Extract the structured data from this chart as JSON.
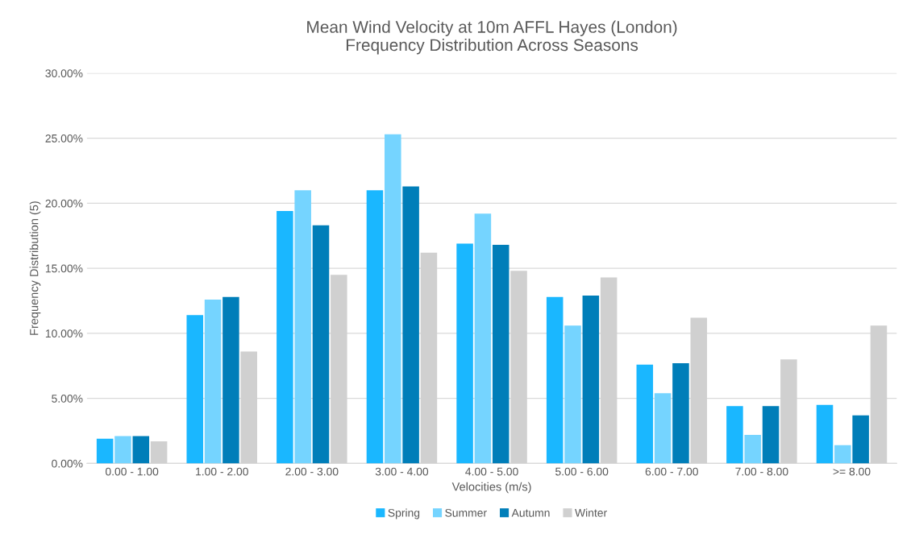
{
  "chart_data": {
    "type": "bar",
    "title": "Mean Wind Velocity at 10m AFFL Hayes (London)\nFrequency Distribution Across Seasons",
    "xlabel": "Velocities (m/s)",
    "ylabel": "Frequency Distribution (5)",
    "categories": [
      "0.00 - 1.00",
      "1.00 - 2.00",
      "2.00 - 3.00",
      "3.00 - 4.00",
      "4.00 - 5.00",
      "5.00 - 6.00",
      "6.00 - 7.00",
      "7.00 - 8.00",
      ">= 8.00"
    ],
    "series": [
      {
        "name": "Spring",
        "color": "#1ab7ff",
        "values": [
          1.9,
          11.4,
          19.4,
          21.0,
          16.9,
          12.8,
          7.6,
          4.4,
          4.5
        ]
      },
      {
        "name": "Summer",
        "color": "#75d4ff",
        "values": [
          2.1,
          12.6,
          21.0,
          25.3,
          19.2,
          10.6,
          5.4,
          2.2,
          1.4
        ]
      },
      {
        "name": "Autumn",
        "color": "#007eb9",
        "values": [
          2.1,
          12.8,
          18.3,
          21.3,
          16.8,
          12.9,
          7.7,
          4.4,
          3.7
        ]
      },
      {
        "name": "Winter",
        "color": "#d0d0d0",
        "values": [
          1.7,
          8.6,
          14.5,
          16.2,
          14.8,
          14.3,
          11.2,
          8.0,
          10.6
        ]
      }
    ],
    "ylim": [
      0,
      30
    ],
    "yticks": [
      {
        "value": 0,
        "label": "0.00%"
      },
      {
        "value": 5,
        "label": "5.00%"
      },
      {
        "value": 10,
        "label": "10.00%"
      },
      {
        "value": 15,
        "label": "15.00%"
      },
      {
        "value": 20,
        "label": "20.00%"
      },
      {
        "value": 25,
        "label": "25.00%"
      },
      {
        "value": 30,
        "label": "30.00%"
      }
    ],
    "grid": "y",
    "legend": "bottom"
  }
}
